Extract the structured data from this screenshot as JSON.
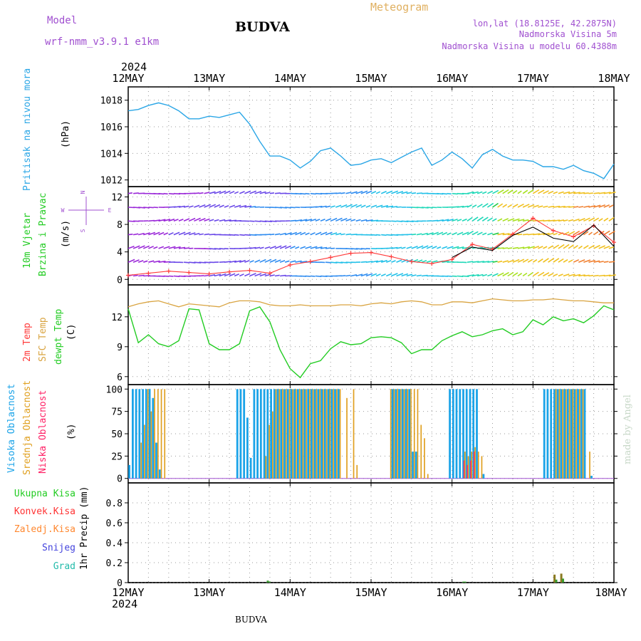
{
  "header": {
    "model_label": "Model",
    "model_name": "wrf-nmm_v3.9.1 e1km",
    "station_title": "BUDVA",
    "meteogram_label": "Meteogram",
    "lonlat": "lon,lat (18.8125E, 42.2875N)",
    "elevation": "Nadmorska Visina 5m",
    "model_elevation": "Nadmorska Visina u modelu 60.4388m",
    "year_top": "2024",
    "year_bottom": "2024",
    "footer_station": "BUDVA",
    "watermark": "made by Angel"
  },
  "colors": {
    "pressure": "#2aa6e6",
    "temp_2m": "#ff3a3a",
    "temp_sfc": "#d9a441",
    "dewpoint": "#22cc22",
    "cloud_high": "#1aa3e8",
    "cloud_mid": "#e0a020",
    "cloud_low": "#ff2266",
    "precip_total": "#22cc22",
    "precip_conv": "#ff3333",
    "precip_frz": "#ff8830",
    "snow": "#4444dd",
    "hail": "#22bbaa",
    "model_label": "#a050d0",
    "meteogram_label": "#e0b060"
  },
  "chart_data": [
    {
      "type": "line",
      "panel": "pressure",
      "ylabel_1": "Pritisak na nivou mora",
      "ylabel_2": "(hPa)",
      "ylim": [
        1011.5,
        1019
      ],
      "yticks": [
        "1012",
        "1014",
        "1016",
        "1018"
      ],
      "ytick_values": [
        1012,
        1014,
        1016,
        1018
      ],
      "x_hours": [
        0,
        3,
        6,
        9,
        12,
        15,
        18,
        21,
        24,
        27,
        30,
        33,
        36,
        39,
        42,
        45,
        48,
        51,
        54,
        57,
        60,
        63,
        66,
        69,
        72,
        75,
        78,
        81,
        84,
        87,
        90,
        93,
        96,
        99,
        102,
        105,
        108,
        111,
        114,
        117,
        120,
        123,
        126,
        129,
        132,
        135,
        138,
        141,
        144
      ],
      "values": [
        1017.2,
        1017.3,
        1017.6,
        1017.8,
        1017.6,
        1017.2,
        1016.6,
        1016.6,
        1016.8,
        1016.7,
        1016.9,
        1017.1,
        1016.2,
        1014.9,
        1013.8,
        1013.8,
        1013.5,
        1012.9,
        1013.4,
        1014.2,
        1014.4,
        1013.8,
        1013.1,
        1013.2,
        1013.5,
        1013.6,
        1013.3,
        1013.7,
        1014.1,
        1014.4,
        1013.1,
        1013.5,
        1014.1,
        1013.6,
        1012.9,
        1013.9,
        1014.3,
        1013.8,
        1013.5,
        1013.5,
        1013.4,
        1013.0,
        1013.0,
        1012.8,
        1013.1,
        1012.7,
        1012.5,
        1012.1,
        1013.2
      ]
    },
    {
      "type": "line",
      "panel": "wind",
      "ylabel_1": "10m Vjetar",
      "ylabel_1b": "Brzina i Pravac",
      "ylabel_2": "(m/s)",
      "compass": {
        "n": "N",
        "s": "S",
        "w": "W",
        "e": "E"
      },
      "ylim": [
        -0.8,
        13.5
      ],
      "yticks": [
        "0",
        "4",
        "8",
        "12"
      ],
      "ytick_values": [
        0,
        4,
        8,
        12
      ],
      "speed_x_hours": [
        0,
        6,
        12,
        18,
        24,
        30,
        36,
        42,
        48,
        54,
        60,
        66,
        72,
        78,
        84,
        90,
        96,
        102,
        108,
        114,
        120,
        126,
        132,
        138,
        144
      ],
      "speed_values": [
        0.6,
        0.9,
        1.2,
        1.0,
        0.8,
        1.1,
        1.3,
        0.9,
        2.1,
        2.6,
        3.2,
        3.8,
        3.9,
        3.3,
        2.6,
        2.3,
        2.9,
        5.1,
        4.4,
        6.6,
        8.9,
        7.1,
        6.2,
        7.8,
        5.4
      ],
      "gust_x_hours": [
        96,
        102,
        108,
        114,
        120,
        126,
        132,
        138,
        144
      ],
      "gust_values": [
        3.2,
        4.7,
        4.2,
        6.4,
        7.6,
        6.0,
        5.5,
        7.9,
        4.8
      ]
    },
    {
      "type": "line",
      "panel": "temperature",
      "ylabel_1": "2m Temp",
      "ylabel_1b": "SFC Temp",
      "ylabel_1c": "dewpt Temp",
      "ylabel_2": "(C)",
      "ylim": [
        5.2,
        15.2
      ],
      "yticks": [
        "6",
        "9",
        "12"
      ],
      "ytick_values": [
        6,
        9,
        12
      ],
      "x_hours": [
        0,
        3,
        6,
        9,
        12,
        15,
        18,
        21,
        24,
        27,
        30,
        33,
        36,
        39,
        42,
        45,
        48,
        51,
        54,
        57,
        60,
        63,
        66,
        69,
        72,
        75,
        78,
        81,
        84,
        87,
        90,
        93,
        96,
        99,
        102,
        105,
        108,
        111,
        114,
        117,
        120,
        123,
        126,
        129,
        132,
        135,
        138,
        141,
        144
      ],
      "series": [
        {
          "name": "SFC Temp",
          "values": [
            13.0,
            13.3,
            13.5,
            13.6,
            13.3,
            13.0,
            13.3,
            13.2,
            13.1,
            13.0,
            13.4,
            13.6,
            13.6,
            13.5,
            13.2,
            13.1,
            13.1,
            13.2,
            13.1,
            13.1,
            13.1,
            13.2,
            13.2,
            13.1,
            13.3,
            13.4,
            13.3,
            13.5,
            13.6,
            13.5,
            13.2,
            13.2,
            13.5,
            13.5,
            13.4,
            13.6,
            13.8,
            13.7,
            13.6,
            13.6,
            13.7,
            13.7,
            13.8,
            13.7,
            13.6,
            13.6,
            13.5,
            13.4,
            13.4
          ]
        },
        {
          "name": "dewpt Temp",
          "values": [
            12.8,
            9.4,
            10.2,
            9.3,
            9.0,
            9.6,
            12.8,
            12.7,
            9.3,
            8.7,
            8.7,
            9.3,
            12.6,
            13.0,
            11.5,
            8.7,
            6.8,
            5.9,
            7.3,
            7.6,
            8.8,
            9.5,
            9.2,
            9.3,
            9.9,
            10.0,
            9.9,
            9.4,
            8.3,
            8.7,
            8.7,
            9.6,
            10.1,
            10.5,
            10.0,
            10.2,
            10.6,
            10.8,
            10.2,
            10.5,
            11.7,
            11.2,
            12.0,
            11.6,
            11.8,
            11.4,
            12.1,
            13.1,
            12.7
          ]
        }
      ]
    },
    {
      "type": "bar",
      "panel": "clouds",
      "ylabel_1": "Visoka Oblacnost",
      "ylabel_1b": "Srednja Oblacnost",
      "ylabel_1c": "Niska Oblacnost",
      "ylabel_2": "(%)",
      "ylim": [
        -5,
        105
      ],
      "yticks": [
        "0",
        "25",
        "50",
        "75",
        "100"
      ],
      "ytick_values": [
        0,
        25,
        50,
        75,
        100
      ],
      "bars": [
        {
          "t": 0.5,
          "h": 15,
          "m": 0,
          "l": 0
        },
        {
          "t": 1.5,
          "h": 100,
          "m": 0,
          "l": 0
        },
        {
          "t": 2.5,
          "h": 100,
          "m": 0,
          "l": 0
        },
        {
          "t": 3.5,
          "h": 100,
          "m": 40,
          "l": 0
        },
        {
          "t": 4.5,
          "h": 100,
          "m": 60,
          "l": 0
        },
        {
          "t": 5.5,
          "h": 100,
          "m": 100,
          "l": 0
        },
        {
          "t": 6.5,
          "h": 100,
          "m": 75,
          "l": 0
        },
        {
          "t": 7.5,
          "h": 90,
          "m": 100,
          "l": 0
        },
        {
          "t": 8.5,
          "h": 40,
          "m": 100,
          "l": 0
        },
        {
          "t": 9.5,
          "h": 10,
          "m": 100,
          "l": 0
        },
        {
          "t": 10.5,
          "h": 0,
          "m": 100,
          "l": 0
        },
        {
          "t": 32.5,
          "h": 100,
          "m": 0,
          "l": 0
        },
        {
          "t": 33.5,
          "h": 100,
          "m": 0,
          "l": 0
        },
        {
          "t": 34.5,
          "h": 100,
          "m": 0,
          "l": 0
        },
        {
          "t": 35.5,
          "h": 68,
          "m": 0,
          "l": 0
        },
        {
          "t": 36.5,
          "h": 23,
          "m": 0,
          "l": 0
        },
        {
          "t": 37.5,
          "h": 100,
          "m": 0,
          "l": 0
        },
        {
          "t": 38.5,
          "h": 100,
          "m": 0,
          "l": 0
        },
        {
          "t": 39.5,
          "h": 100,
          "m": 0,
          "l": 0
        },
        {
          "t": 40.5,
          "h": 100,
          "m": 25,
          "l": 0
        },
        {
          "t": 41.5,
          "h": 100,
          "m": 60,
          "l": 0
        },
        {
          "t": 42.5,
          "h": 100,
          "m": 75,
          "l": 0
        },
        {
          "t": 43.5,
          "h": 100,
          "m": 100,
          "l": 0
        },
        {
          "t": 44.5,
          "h": 100,
          "m": 100,
          "l": 0
        },
        {
          "t": 45.5,
          "h": 100,
          "m": 100,
          "l": 0
        },
        {
          "t": 46.5,
          "h": 100,
          "m": 100,
          "l": 0
        },
        {
          "t": 47.5,
          "h": 100,
          "m": 100,
          "l": 0
        },
        {
          "t": 48.5,
          "h": 100,
          "m": 100,
          "l": 0
        },
        {
          "t": 49.5,
          "h": 100,
          "m": 100,
          "l": 0
        },
        {
          "t": 50.5,
          "h": 100,
          "m": 100,
          "l": 0
        },
        {
          "t": 51.5,
          "h": 100,
          "m": 100,
          "l": 0
        },
        {
          "t": 52.5,
          "h": 100,
          "m": 100,
          "l": 0
        },
        {
          "t": 53.5,
          "h": 100,
          "m": 100,
          "l": 0
        },
        {
          "t": 54.5,
          "h": 100,
          "m": 100,
          "l": 0
        },
        {
          "t": 55.5,
          "h": 100,
          "m": 100,
          "l": 0
        },
        {
          "t": 56.5,
          "h": 100,
          "m": 100,
          "l": 0
        },
        {
          "t": 57.5,
          "h": 100,
          "m": 100,
          "l": 0
        },
        {
          "t": 58.5,
          "h": 100,
          "m": 100,
          "l": 0
        },
        {
          "t": 59.5,
          "h": 100,
          "m": 100,
          "l": 0
        },
        {
          "t": 60.5,
          "h": 100,
          "m": 100,
          "l": 0
        },
        {
          "t": 61.5,
          "h": 100,
          "m": 100,
          "l": 0
        },
        {
          "t": 62.5,
          "h": 100,
          "m": 100,
          "l": 0
        },
        {
          "t": 64.5,
          "h": 0,
          "m": 90,
          "l": 0
        },
        {
          "t": 66.5,
          "h": 0,
          "m": 100,
          "l": 0
        },
        {
          "t": 67.5,
          "h": 0,
          "m": 15,
          "l": 0
        },
        {
          "t": 77.5,
          "h": 0,
          "m": 100,
          "l": 0
        },
        {
          "t": 78.5,
          "h": 100,
          "m": 100,
          "l": 0
        },
        {
          "t": 79.5,
          "h": 100,
          "m": 100,
          "l": 0
        },
        {
          "t": 80.5,
          "h": 100,
          "m": 100,
          "l": 0
        },
        {
          "t": 81.5,
          "h": 100,
          "m": 100,
          "l": 0
        },
        {
          "t": 82.5,
          "h": 100,
          "m": 100,
          "l": 0
        },
        {
          "t": 83.5,
          "h": 100,
          "m": 100,
          "l": 0
        },
        {
          "t": 84.5,
          "h": 30,
          "m": 100,
          "l": 0
        },
        {
          "t": 85.5,
          "h": 30,
          "m": 100,
          "l": 0
        },
        {
          "t": 86.5,
          "h": 0,
          "m": 60,
          "l": 0
        },
        {
          "t": 87.5,
          "h": 0,
          "m": 45,
          "l": 0
        },
        {
          "t": 88.5,
          "h": 0,
          "m": 5,
          "l": 0
        },
        {
          "t": 95.5,
          "h": 100,
          "m": 0,
          "l": 0
        },
        {
          "t": 96.5,
          "h": 100,
          "m": 0,
          "l": 0
        },
        {
          "t": 97.5,
          "h": 100,
          "m": 0,
          "l": 0
        },
        {
          "t": 98.5,
          "h": 100,
          "m": 0,
          "l": 0
        },
        {
          "t": 99.5,
          "h": 100,
          "m": 30,
          "l": 20
        },
        {
          "t": 100.5,
          "h": 100,
          "m": 25,
          "l": 15
        },
        {
          "t": 101.5,
          "h": 100,
          "m": 30,
          "l": 20
        },
        {
          "t": 102.5,
          "h": 100,
          "m": 35,
          "l": 30
        },
        {
          "t": 103.5,
          "h": 100,
          "m": 30,
          "l": 0
        },
        {
          "t": 104.5,
          "h": 0,
          "m": 25,
          "l": 0
        },
        {
          "t": 105.5,
          "h": 5,
          "m": 0,
          "l": 0
        },
        {
          "t": 123.5,
          "h": 100,
          "m": 0,
          "l": 0
        },
        {
          "t": 124.5,
          "h": 100,
          "m": 0,
          "l": 0
        },
        {
          "t": 125.5,
          "h": 100,
          "m": 0,
          "l": 0
        },
        {
          "t": 126.5,
          "h": 100,
          "m": 100,
          "l": 0
        },
        {
          "t": 127.5,
          "h": 100,
          "m": 100,
          "l": 0
        },
        {
          "t": 128.5,
          "h": 100,
          "m": 100,
          "l": 0
        },
        {
          "t": 129.5,
          "h": 100,
          "m": 100,
          "l": 0
        },
        {
          "t": 130.5,
          "h": 100,
          "m": 100,
          "l": 0
        },
        {
          "t": 131.5,
          "h": 100,
          "m": 100,
          "l": 0
        },
        {
          "t": 132.5,
          "h": 100,
          "m": 100,
          "l": 0
        },
        {
          "t": 133.5,
          "h": 100,
          "m": 100,
          "l": 0
        },
        {
          "t": 134.5,
          "h": 100,
          "m": 100,
          "l": 0
        },
        {
          "t": 135.5,
          "h": 100,
          "m": 0,
          "l": 0
        },
        {
          "t": 136.5,
          "h": 0,
          "m": 30,
          "l": 0
        },
        {
          "t": 137.5,
          "h": 3,
          "m": 0,
          "l": 0
        }
      ]
    },
    {
      "type": "bar",
      "panel": "precip",
      "ylabel_1": "1hr Precip (mm)",
      "legend": [
        "Ukupna Kisa",
        "Konvek.Kisa",
        "Zaledj.Kisa",
        "Snijeg",
        "Grad"
      ],
      "ylim": [
        0,
        1.0
      ],
      "yticks": [
        "0",
        "0.2",
        "0.4",
        "0.6",
        "0.8"
      ],
      "ytick_values": [
        0,
        0.2,
        0.4,
        0.6,
        0.8
      ],
      "bars": [
        {
          "t": 41.5,
          "v": 0.02
        },
        {
          "t": 42.0,
          "v": 0.01
        },
        {
          "t": 99.5,
          "v": 0.01
        },
        {
          "t": 100.0,
          "v": 0.01
        },
        {
          "t": 126.5,
          "v": 0.08
        },
        {
          "t": 127.0,
          "v": 0.03
        },
        {
          "t": 128.5,
          "v": 0.09
        },
        {
          "t": 129.0,
          "v": 0.04
        }
      ]
    }
  ],
  "x_axis": {
    "labels": [
      "12MAY",
      "13MAY",
      "14MAY",
      "15MAY",
      "16MAY",
      "17MAY",
      "18MAY"
    ],
    "hours": [
      0,
      24,
      48,
      72,
      96,
      120,
      144
    ]
  }
}
